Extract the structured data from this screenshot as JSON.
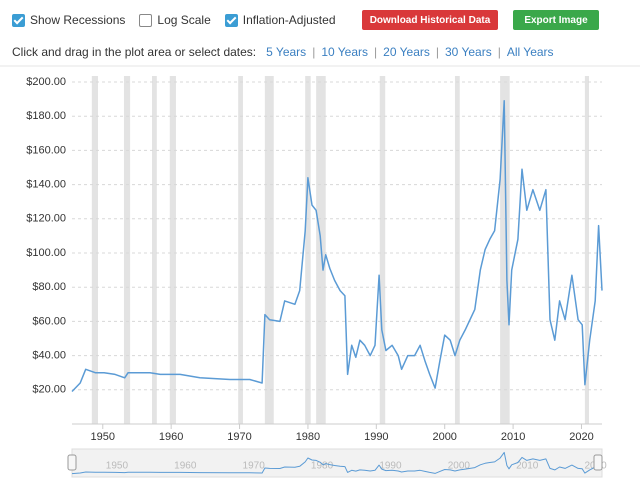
{
  "controls": {
    "checkboxes": [
      {
        "label": "Show Recessions",
        "checked": true
      },
      {
        "label": "Log Scale",
        "checked": false
      },
      {
        "label": "Inflation-Adjusted",
        "checked": true
      }
    ],
    "buttons": [
      {
        "label": "Download Historical Data",
        "color": "#d9383a"
      },
      {
        "label": "Export Image",
        "color": "#3aa84a"
      }
    ],
    "date_prompt": "Click and drag in the plot area or select dates:",
    "date_links": [
      "5 Years",
      "10 Years",
      "20 Years",
      "30 Years",
      "All Years"
    ]
  },
  "chart_data": {
    "type": "line",
    "color": "#5b9bd5",
    "grid": true,
    "recession_color": "#e3e3e3",
    "xlim": [
      1945.5,
      2023
    ],
    "xticks": [
      1950,
      1960,
      1970,
      1980,
      1990,
      2000,
      2010,
      2020
    ],
    "ylim": [
      0,
      200
    ],
    "yticks": [
      {
        "value": 20,
        "label": "$20.00"
      },
      {
        "value": 40,
        "label": "$40.00"
      },
      {
        "value": 60,
        "label": "$60.00"
      },
      {
        "value": 80,
        "label": "$80.00"
      },
      {
        "value": 100,
        "label": "$100.00"
      },
      {
        "value": 120,
        "label": "$120.00"
      },
      {
        "value": 140,
        "label": "$140.00"
      },
      {
        "value": 160,
        "label": "$160.00"
      },
      {
        "value": 180,
        "label": "$180.00"
      },
      {
        "value": 200,
        "label": "$200.00"
      }
    ],
    "recessions": [
      [
        1948.4,
        1949.3
      ],
      [
        1953.1,
        1954.0
      ],
      [
        1957.2,
        1957.9
      ],
      [
        1959.8,
        1960.7
      ],
      [
        1969.8,
        1970.5
      ],
      [
        1973.7,
        1975.0
      ],
      [
        1979.6,
        1980.4
      ],
      [
        1981.2,
        1982.6
      ],
      [
        1990.5,
        1991.3
      ],
      [
        2001.5,
        2002.2
      ],
      [
        2008.1,
        2009.5
      ],
      [
        2020.5,
        2021.1
      ]
    ],
    "x": [
      1945.5,
      1946.7,
      1947.5,
      1948.9,
      1950.2,
      1951.8,
      1953.2,
      1953.7,
      1956.9,
      1958.4,
      1961.3,
      1964.2,
      1968.6,
      1971.5,
      1973.3,
      1973.7,
      1974.4,
      1975.9,
      1976.6,
      1978.1,
      1978.8,
      1979.6,
      1980.0,
      1980.6,
      1981.2,
      1981.8,
      1982.2,
      1982.6,
      1983.2,
      1983.9,
      1984.7,
      1985.4,
      1985.8,
      1986.4,
      1987.0,
      1987.6,
      1988.3,
      1989.1,
      1989.8,
      1990.4,
      1990.8,
      1991.4,
      1992.3,
      1993.2,
      1993.7,
      1994.6,
      1995.6,
      1996.4,
      1997.1,
      1997.8,
      1998.6,
      1999.3,
      2000.0,
      2000.8,
      2001.5,
      2002.2,
      2003.0,
      2003.7,
      2004.4,
      2005.2,
      2005.9,
      2006.6,
      2007.3,
      2008.1,
      2008.7,
      2009.1,
      2009.4,
      2009.8,
      2010.7,
      2011.3,
      2012.0,
      2012.9,
      2013.9,
      2014.8,
      2015.4,
      2016.1,
      2016.8,
      2017.6,
      2018.6,
      2019.5,
      2020.1,
      2020.5,
      2021.2,
      2022.0,
      2022.5,
      2023.0
    ],
    "values": [
      19,
      24,
      32,
      30,
      30,
      29,
      27,
      30,
      30,
      29,
      29,
      27,
      26,
      26,
      24,
      64,
      61,
      60,
      72,
      70,
      78,
      113,
      144,
      128,
      125,
      110,
      90,
      99,
      91,
      84,
      78,
      75,
      29,
      46,
      39,
      49,
      46,
      40,
      46,
      87,
      55,
      43,
      46,
      40,
      32,
      40,
      40,
      46,
      37,
      29,
      21,
      37,
      52,
      49,
      40,
      49,
      55,
      61,
      67,
      90,
      102,
      108,
      113,
      143,
      189,
      84,
      58,
      90,
      108,
      149,
      125,
      137,
      125,
      137,
      61,
      49,
      72,
      61,
      87,
      61,
      58,
      23,
      49,
      72,
      116,
      78
    ]
  }
}
